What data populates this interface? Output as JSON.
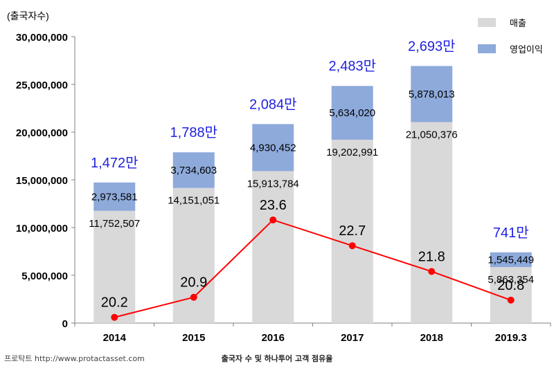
{
  "chart_data": {
    "type": "bar",
    "ylabel": "(출국자수)",
    "ylim": [
      0,
      30000000
    ],
    "yticks": [
      0,
      5000000,
      10000000,
      15000000,
      20000000,
      25000000,
      30000000
    ],
    "ytick_labels": [
      "0",
      "5,000,000",
      "10,000,000",
      "15,000,000",
      "20,000,000",
      "25,000,000",
      "30,000,000"
    ],
    "categories": [
      "2014",
      "2015",
      "2016",
      "2017",
      "2018",
      "2019.3"
    ],
    "series": [
      {
        "name": "매출",
        "color": "#d9d9d9",
        "values": [
          11752507,
          14151051,
          15913784,
          19202991,
          21050376,
          5863354
        ],
        "labels": [
          "11,752,507",
          "14,151,051",
          "15,913,784",
          "19,202,991",
          "21,050,376",
          "5,863,354"
        ]
      },
      {
        "name": "영업이익",
        "color": "#8eaadb",
        "values": [
          2973581,
          3734603,
          4930452,
          5634020,
          5878013,
          1545449
        ],
        "labels": [
          "2,973,581",
          "3,734,603",
          "4,930,452",
          "5,634,020",
          "5,878,013",
          "1,545,449"
        ]
      }
    ],
    "totals": [
      "1,472만",
      "1,788만",
      "2,084만",
      "2,483만",
      "2,693만",
      "741만"
    ],
    "line": {
      "color": "#ff0000",
      "values": [
        20.2,
        20.9,
        23.6,
        22.7,
        21.8,
        20.8
      ],
      "labels": [
        "20.2",
        "20.9",
        "23.6",
        "22.7",
        "21.8",
        "20.8"
      ],
      "ylim": [
        20,
        30
      ]
    },
    "stacked": true,
    "legend_position": "top-right",
    "grid": false
  },
  "footer": {
    "source": "프로탁트 http://www.protactasset.com",
    "caption": "출국자 수 및 하나투어 고객 점유율"
  }
}
